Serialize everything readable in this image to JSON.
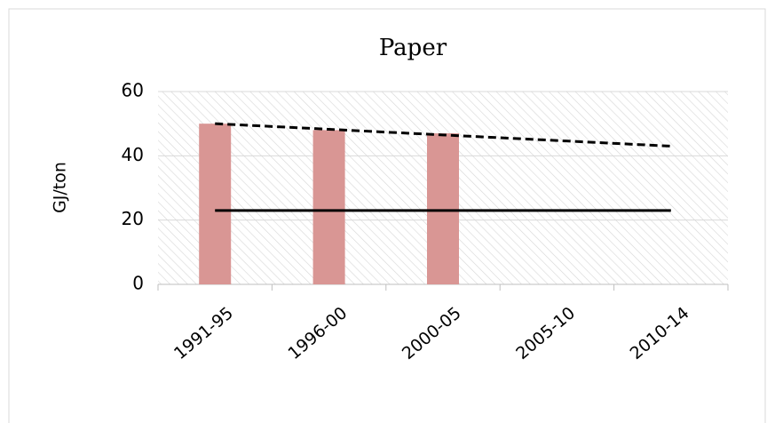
{
  "chart_data": {
    "type": "bar",
    "title": "Paper",
    "y_label": "GJ/ton",
    "categories": [
      "1991-95",
      "1996-00",
      "2000-05",
      "2005-10",
      "2010-14"
    ],
    "series": [
      {
        "type": "bar",
        "color": "#d99694",
        "values": [
          50,
          48,
          47,
          null,
          null
        ]
      },
      {
        "type": "line",
        "color": "#000000",
        "style": "dashed",
        "values": [
          50,
          48.25,
          46.5,
          44.75,
          43
        ]
      },
      {
        "type": "line",
        "color": "#000000",
        "style": "solid",
        "values": [
          23,
          23,
          23,
          23,
          23
        ]
      }
    ],
    "ylim": [
      0,
      60
    ],
    "yticks": [
      0,
      20,
      40,
      60
    ],
    "grid": true
  }
}
